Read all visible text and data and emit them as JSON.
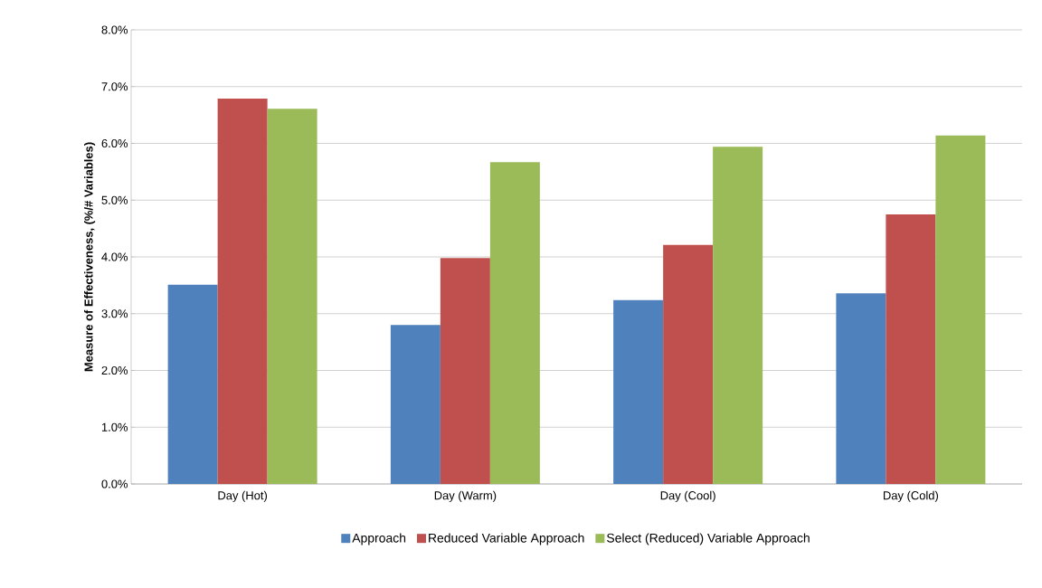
{
  "chart_data": {
    "type": "bar",
    "ylabel": "Measure of Effectiveness, (%/# Variables)",
    "categories": [
      "Day (Hot)",
      "Day (Warm)",
      "Day (Cool)",
      "Day (Cold)"
    ],
    "series": [
      {
        "name": "Approach",
        "color": "#4f81bd",
        "values": [
          3.51,
          2.8,
          3.24,
          3.36
        ]
      },
      {
        "name": "Reduced Variable Approach",
        "color": "#c0504d",
        "values": [
          6.79,
          3.98,
          4.21,
          4.75
        ]
      },
      {
        "name": "Select (Reduced) Variable Approach",
        "color": "#9bbb59",
        "values": [
          6.61,
          5.67,
          5.94,
          6.14
        ]
      }
    ],
    "ylim": [
      0,
      8
    ],
    "yticks": [
      {
        "value": 0,
        "label": "0.0%"
      },
      {
        "value": 1,
        "label": "1.0%"
      },
      {
        "value": 2,
        "label": "2.0%"
      },
      {
        "value": 3,
        "label": "3.0%"
      },
      {
        "value": 4,
        "label": "4.0%"
      },
      {
        "value": 5,
        "label": "5.0%"
      },
      {
        "value": 6,
        "label": "6.0%"
      },
      {
        "value": 7,
        "label": "7.0%"
      },
      {
        "value": 8,
        "label": "8.0%"
      }
    ],
    "grid": "y",
    "legend": "bottom"
  }
}
